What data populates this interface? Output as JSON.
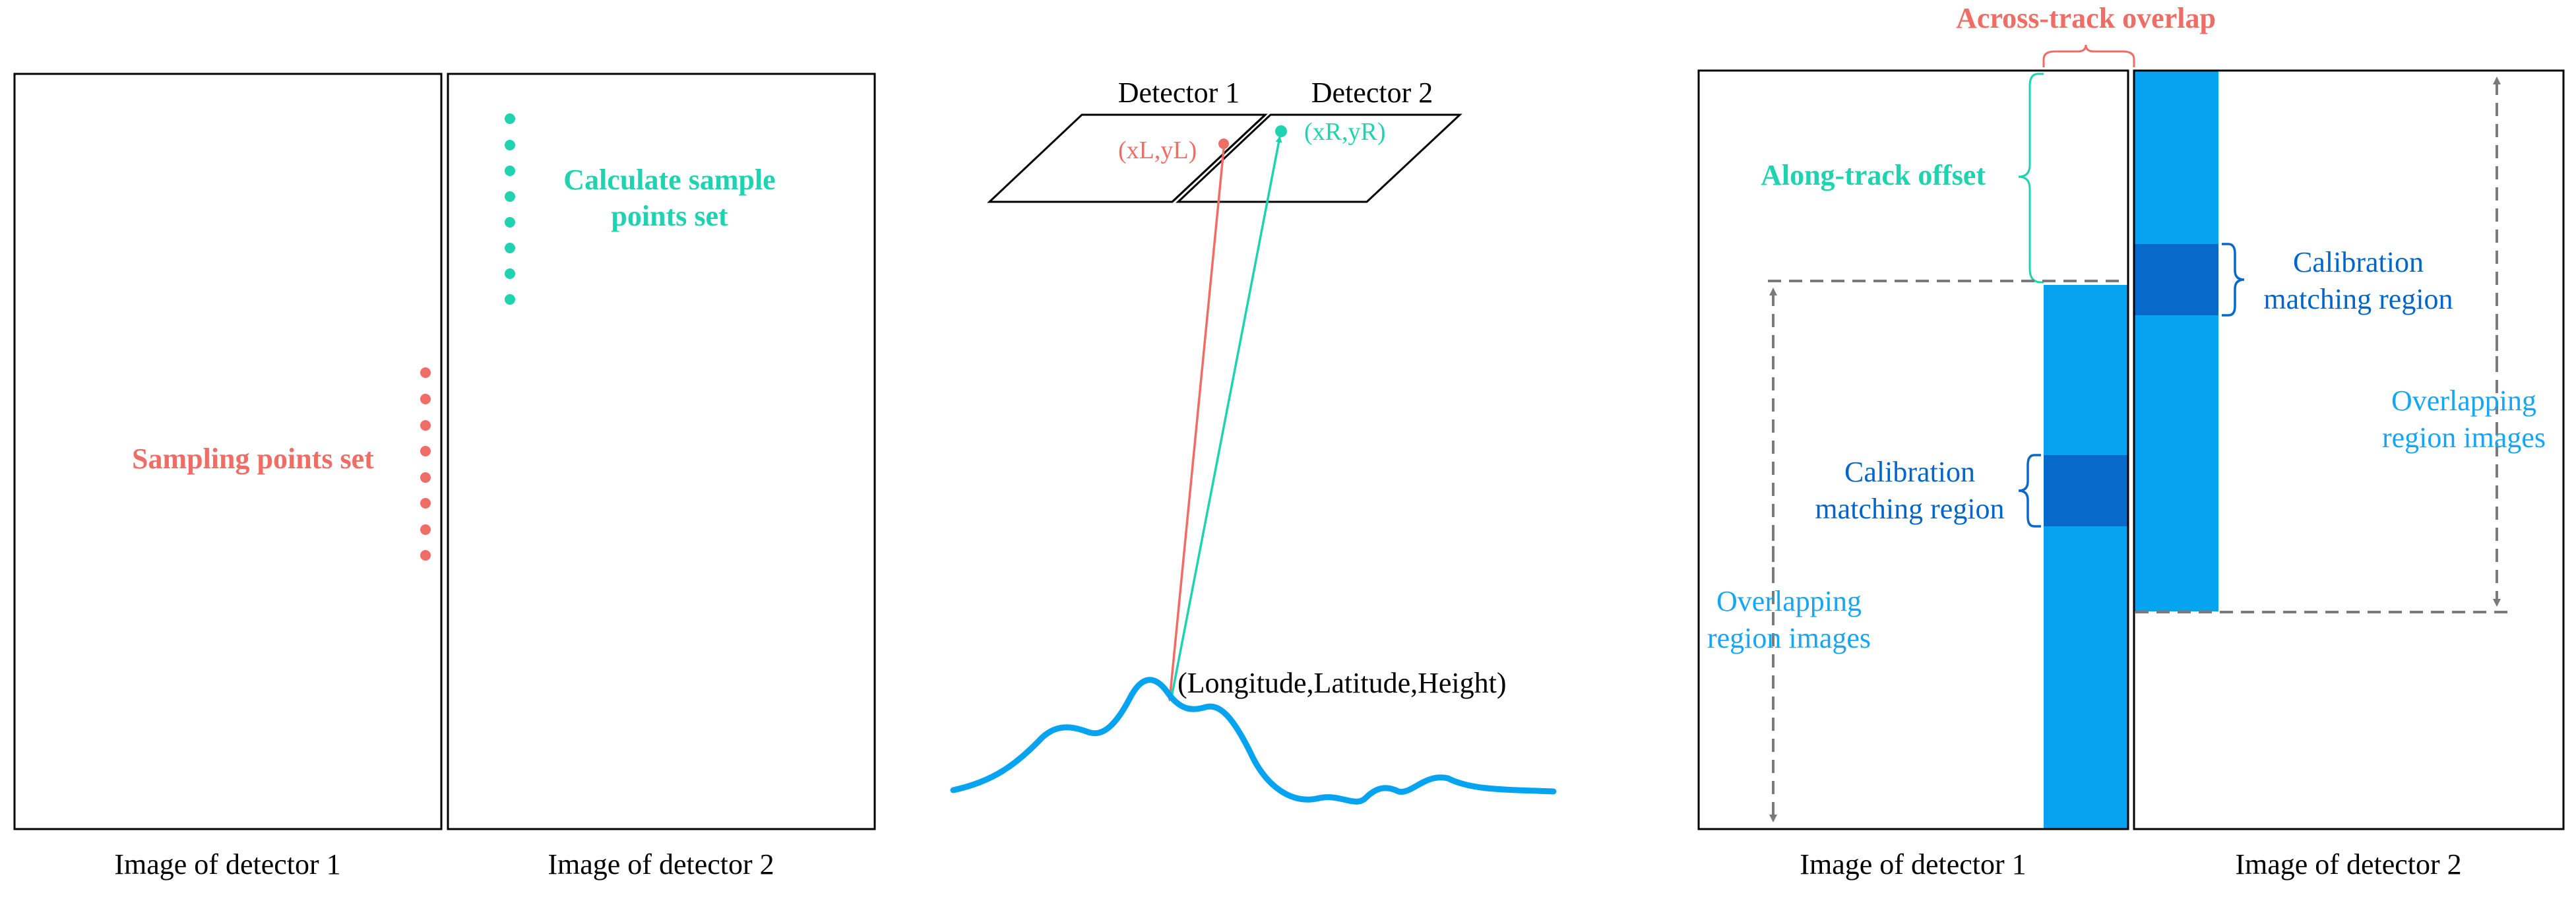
{
  "colors": {
    "red": "#f06d65",
    "teal": "#1fd3b0",
    "light_blue": "#05a3f0",
    "dark_blue": "#0769c9",
    "label_blue": "#0066cc",
    "overlap_text_blue": "#17a6f5",
    "dash_gray": "#7a7a7a"
  },
  "panel_a": {
    "caption_left": "Image of detector 1",
    "caption_right": "Image of detector 2",
    "sampling_label": "Sampling points set",
    "calc_label_line1": "Calculate sample",
    "calc_label_line2": "points set"
  },
  "panel_b": {
    "detector1": "Detector 1",
    "detector2": "Detector 2",
    "point_left": "(xL,yL)",
    "point_right": "(xR,yR)",
    "ground_point": "(Longitude,Latitude,Height)"
  },
  "panel_c": {
    "across_track": "Across-track overlap",
    "along_track": "Along-track offset",
    "calib_right_line1": "Calibration",
    "calib_right_line2": "matching region",
    "calib_left_line1": "Calibration",
    "calib_left_line2": "matching region",
    "overlap_right_line1": "Overlapping",
    "overlap_right_line2": "region images",
    "overlap_left_line1": "Overlapping",
    "overlap_left_line2": "region images",
    "caption_left": "Image of detector 1",
    "caption_right": "Image of detector 2"
  }
}
